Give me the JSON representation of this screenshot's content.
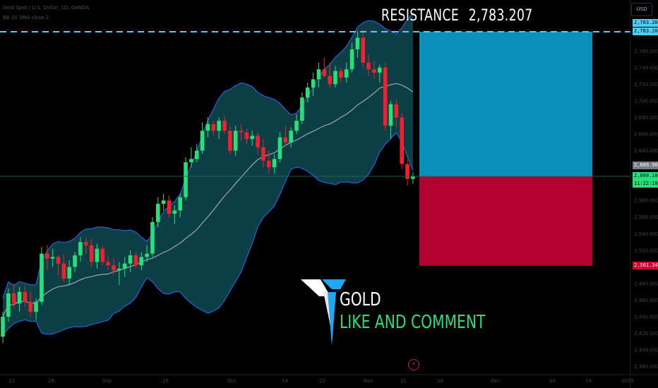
{
  "header": {
    "symbol_line": "Gold Spot / U.S. Dollar, 1D, OANDA",
    "indicator_line": "BB 20 SMA close 2"
  },
  "currency": "USD",
  "resistance": {
    "label": "RESISTANCE",
    "value": "2,783.207"
  },
  "price_tags": {
    "resistance_a": "2,783.207",
    "resistance_b": "2,783.207",
    "mid": "2,609.905",
    "current": "2,609.100",
    "countdown": "11:22:18",
    "stop": "2,501.346"
  },
  "logo": {
    "title": "GOLD",
    "subtitle": "LIKE AND COMMENT"
  },
  "colors": {
    "up": "#26e07a",
    "down": "#f0202e",
    "band_fill": "#0c3f45",
    "band_line": "#2f5fd8",
    "basis_line": "#a0a6ae",
    "resistance_line": "#4fd0f2",
    "target_box": "#0a8fb8",
    "stop_box": "#b2002f"
  },
  "chart_data": {
    "type": "candlestick",
    "title": "",
    "y_axis_ticks": [
      2780,
      2760,
      2740,
      2720,
      2700,
      2680,
      2660,
      2640,
      2620,
      2600,
      2580,
      2560,
      2540,
      2520,
      2500,
      2480,
      2460,
      2440,
      2420,
      2400,
      2380
    ],
    "x_axis_ticks": [
      "12",
      "26",
      "Sep",
      "16",
      "Oct",
      "14",
      "22",
      "Nov",
      "11",
      "18",
      "Dec",
      "16",
      "24",
      "2025"
    ],
    "resistance_level": 2783.207,
    "current_price": 2609.1,
    "stop_level": 2501.346,
    "series": [
      {
        "o": 2416,
        "h": 2446,
        "l": 2408,
        "c": 2440
      },
      {
        "o": 2440,
        "h": 2474,
        "l": 2434,
        "c": 2468
      },
      {
        "o": 2468,
        "h": 2480,
        "l": 2450,
        "c": 2456
      },
      {
        "o": 2456,
        "h": 2476,
        "l": 2446,
        "c": 2470
      },
      {
        "o": 2470,
        "h": 2478,
        "l": 2452,
        "c": 2458
      },
      {
        "o": 2458,
        "h": 2470,
        "l": 2440,
        "c": 2446
      },
      {
        "o": 2446,
        "h": 2462,
        "l": 2436,
        "c": 2458
      },
      {
        "o": 2458,
        "h": 2524,
        "l": 2454,
        "c": 2516
      },
      {
        "o": 2516,
        "h": 2526,
        "l": 2496,
        "c": 2510
      },
      {
        "o": 2510,
        "h": 2522,
        "l": 2500,
        "c": 2512
      },
      {
        "o": 2512,
        "h": 2514,
        "l": 2490,
        "c": 2504
      },
      {
        "o": 2504,
        "h": 2516,
        "l": 2482,
        "c": 2486
      },
      {
        "o": 2486,
        "h": 2508,
        "l": 2478,
        "c": 2500
      },
      {
        "o": 2500,
        "h": 2518,
        "l": 2494,
        "c": 2514
      },
      {
        "o": 2514,
        "h": 2536,
        "l": 2506,
        "c": 2530
      },
      {
        "o": 2530,
        "h": 2536,
        "l": 2516,
        "c": 2526
      },
      {
        "o": 2526,
        "h": 2534,
        "l": 2500,
        "c": 2506
      },
      {
        "o": 2506,
        "h": 2528,
        "l": 2498,
        "c": 2522
      },
      {
        "o": 2522,
        "h": 2526,
        "l": 2502,
        "c": 2506
      },
      {
        "o": 2506,
        "h": 2514,
        "l": 2496,
        "c": 2502
      },
      {
        "o": 2502,
        "h": 2510,
        "l": 2490,
        "c": 2496
      },
      {
        "o": 2496,
        "h": 2506,
        "l": 2478,
        "c": 2498
      },
      {
        "o": 2498,
        "h": 2512,
        "l": 2488,
        "c": 2504
      },
      {
        "o": 2504,
        "h": 2520,
        "l": 2494,
        "c": 2514
      },
      {
        "o": 2514,
        "h": 2518,
        "l": 2498,
        "c": 2502
      },
      {
        "o": 2502,
        "h": 2518,
        "l": 2496,
        "c": 2512
      },
      {
        "o": 2512,
        "h": 2526,
        "l": 2506,
        "c": 2516
      },
      {
        "o": 2516,
        "h": 2560,
        "l": 2512,
        "c": 2554
      },
      {
        "o": 2554,
        "h": 2584,
        "l": 2548,
        "c": 2576
      },
      {
        "o": 2576,
        "h": 2588,
        "l": 2568,
        "c": 2580
      },
      {
        "o": 2580,
        "h": 2586,
        "l": 2560,
        "c": 2564
      },
      {
        "o": 2564,
        "h": 2574,
        "l": 2552,
        "c": 2568
      },
      {
        "o": 2568,
        "h": 2588,
        "l": 2560,
        "c": 2584
      },
      {
        "o": 2584,
        "h": 2632,
        "l": 2580,
        "c": 2626
      },
      {
        "o": 2626,
        "h": 2644,
        "l": 2620,
        "c": 2630
      },
      {
        "o": 2630,
        "h": 2648,
        "l": 2626,
        "c": 2640
      },
      {
        "o": 2640,
        "h": 2674,
        "l": 2636,
        "c": 2664
      },
      {
        "o": 2664,
        "h": 2680,
        "l": 2656,
        "c": 2672
      },
      {
        "o": 2672,
        "h": 2676,
        "l": 2658,
        "c": 2664
      },
      {
        "o": 2664,
        "h": 2680,
        "l": 2654,
        "c": 2676
      },
      {
        "o": 2676,
        "h": 2682,
        "l": 2660,
        "c": 2664
      },
      {
        "o": 2664,
        "h": 2670,
        "l": 2636,
        "c": 2640
      },
      {
        "o": 2640,
        "h": 2670,
        "l": 2634,
        "c": 2664
      },
      {
        "o": 2664,
        "h": 2672,
        "l": 2652,
        "c": 2662
      },
      {
        "o": 2662,
        "h": 2666,
        "l": 2648,
        "c": 2654
      },
      {
        "o": 2654,
        "h": 2664,
        "l": 2646,
        "c": 2658
      },
      {
        "o": 2658,
        "h": 2662,
        "l": 2636,
        "c": 2644
      },
      {
        "o": 2644,
        "h": 2654,
        "l": 2620,
        "c": 2628
      },
      {
        "o": 2628,
        "h": 2640,
        "l": 2612,
        "c": 2620
      },
      {
        "o": 2620,
        "h": 2636,
        "l": 2612,
        "c": 2630
      },
      {
        "o": 2630,
        "h": 2662,
        "l": 2626,
        "c": 2656
      },
      {
        "o": 2656,
        "h": 2670,
        "l": 2646,
        "c": 2650
      },
      {
        "o": 2650,
        "h": 2668,
        "l": 2644,
        "c": 2664
      },
      {
        "o": 2664,
        "h": 2684,
        "l": 2660,
        "c": 2676
      },
      {
        "o": 2676,
        "h": 2710,
        "l": 2672,
        "c": 2704
      },
      {
        "o": 2704,
        "h": 2722,
        "l": 2698,
        "c": 2716
      },
      {
        "o": 2716,
        "h": 2734,
        "l": 2706,
        "c": 2726
      },
      {
        "o": 2726,
        "h": 2746,
        "l": 2716,
        "c": 2738
      },
      {
        "o": 2738,
        "h": 2752,
        "l": 2728,
        "c": 2730
      },
      {
        "o": 2730,
        "h": 2746,
        "l": 2716,
        "c": 2720
      },
      {
        "o": 2720,
        "h": 2742,
        "l": 2716,
        "c": 2736
      },
      {
        "o": 2736,
        "h": 2740,
        "l": 2722,
        "c": 2728
      },
      {
        "o": 2728,
        "h": 2746,
        "l": 2722,
        "c": 2738
      },
      {
        "o": 2738,
        "h": 2770,
        "l": 2734,
        "c": 2762
      },
      {
        "o": 2762,
        "h": 2784,
        "l": 2752,
        "c": 2776
      },
      {
        "o": 2776,
        "h": 2786,
        "l": 2740,
        "c": 2746
      },
      {
        "o": 2746,
        "h": 2756,
        "l": 2730,
        "c": 2738
      },
      {
        "o": 2738,
        "h": 2748,
        "l": 2726,
        "c": 2734
      },
      {
        "o": 2734,
        "h": 2744,
        "l": 2722,
        "c": 2740
      },
      {
        "o": 2740,
        "h": 2746,
        "l": 2664,
        "c": 2670
      },
      {
        "o": 2670,
        "h": 2700,
        "l": 2654,
        "c": 2696
      },
      {
        "o": 2696,
        "h": 2702,
        "l": 2668,
        "c": 2680
      },
      {
        "o": 2680,
        "h": 2686,
        "l": 2618,
        "c": 2624
      },
      {
        "o": 2624,
        "h": 2630,
        "l": 2598,
        "c": 2606
      },
      {
        "o": 2606,
        "h": 2614,
        "l": 2600,
        "c": 2609.1
      }
    ]
  }
}
